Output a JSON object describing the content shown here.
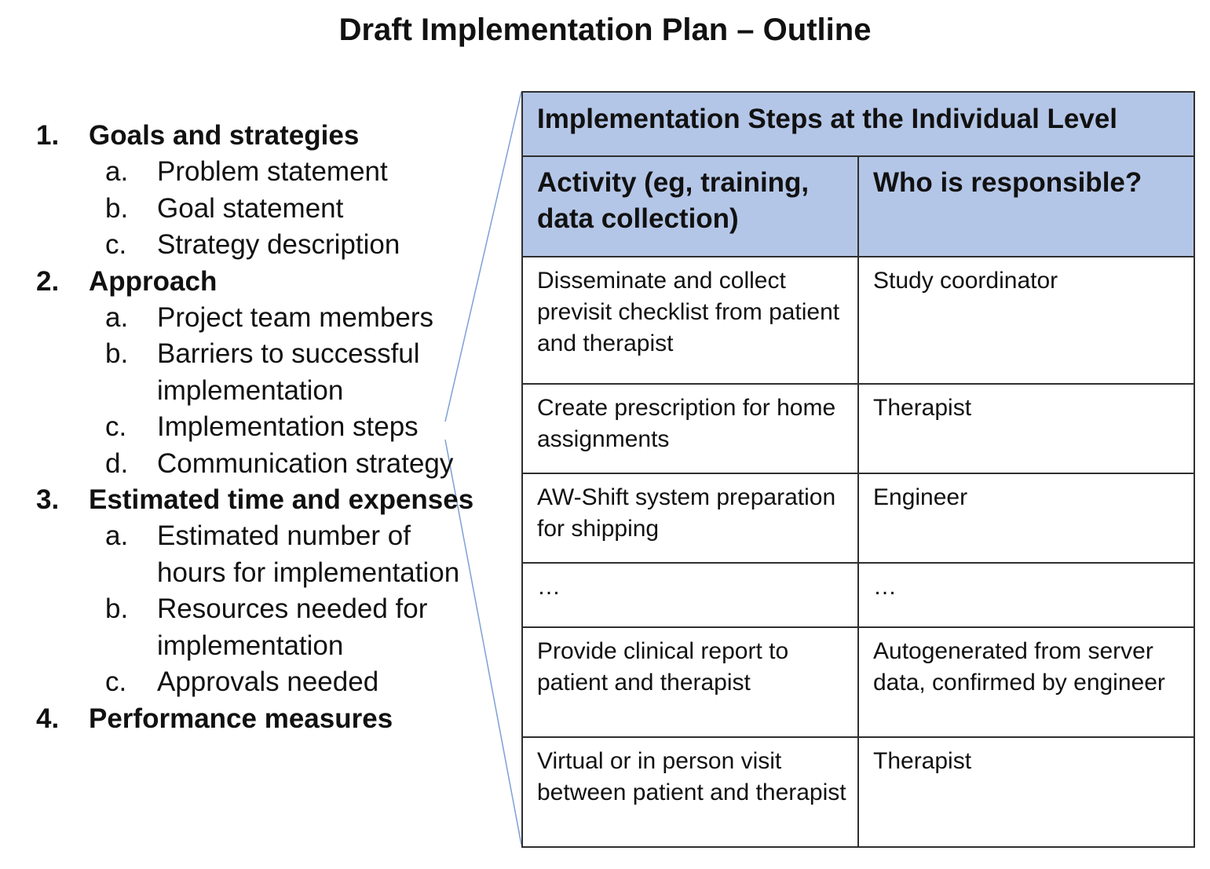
{
  "title": "Draft Implementation Plan – Outline",
  "outline": [
    {
      "number": "1.",
      "label": "Goals and strategies",
      "subitems": [
        {
          "letter": "a.",
          "label": "Problem statement"
        },
        {
          "letter": "b.",
          "label": "Goal statement"
        },
        {
          "letter": "c.",
          "label": "Strategy description"
        }
      ]
    },
    {
      "number": "2.",
      "label": "Approach",
      "subitems": [
        {
          "letter": "a.",
          "label": "Project team members"
        },
        {
          "letter": "b.",
          "label": "Barriers to successful implementation"
        },
        {
          "letter": "c.",
          "label": "Implementation steps"
        },
        {
          "letter": "d.",
          "label": "Communication strategy"
        }
      ]
    },
    {
      "number": "3.",
      "label": "Estimated time and expenses",
      "subitems": [
        {
          "letter": "a.",
          "label": "Estimated number of hours for implementation"
        },
        {
          "letter": "b.",
          "label": "Resources needed for implementation"
        },
        {
          "letter": "c.",
          "label": "Approvals needed"
        }
      ]
    },
    {
      "number": "4.",
      "label": "Performance measures",
      "subitems": []
    }
  ],
  "table": {
    "title": "Implementation Steps at the Individual Level",
    "columns": [
      "Activity (eg, training, data collection)",
      "Who is responsible?"
    ],
    "rows": [
      {
        "activity": "Disseminate and collect previsit checklist from patient and therapist",
        "responsible": "Study coordinator"
      },
      {
        "activity": "Create prescription for home assignments",
        "responsible": "Therapist"
      },
      {
        "activity": "AW-Shift system preparation for shipping",
        "responsible": "Engineer"
      },
      {
        "activity": "…",
        "responsible": "…"
      },
      {
        "activity": "Provide clinical report to patient and therapist",
        "responsible": "Autogenerated from server data, confirmed by engineer"
      },
      {
        "activity": "Virtual or in person visit between patient and therapist",
        "responsible": "Therapist"
      }
    ]
  },
  "colors": {
    "header_fill": "#b4c6e7",
    "connector_line": "#7f9fd6",
    "border": "#2f2f2f"
  }
}
